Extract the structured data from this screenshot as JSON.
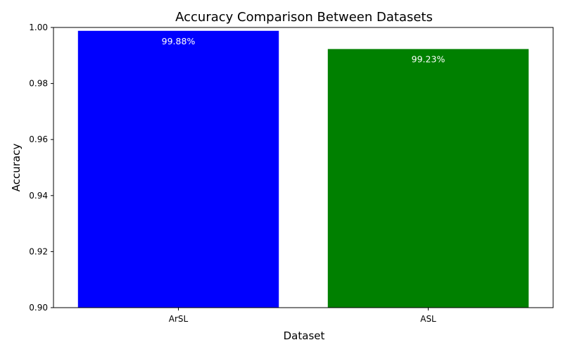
{
  "chart_data": {
    "type": "bar",
    "title": "Accuracy Comparison Between Datasets",
    "xlabel": "Dataset",
    "ylabel": "Accuracy",
    "categories": [
      "ArSL",
      "ASL"
    ],
    "values": [
      0.9988,
      0.9923
    ],
    "data_labels": [
      "99.88%",
      "99.23%"
    ],
    "colors": [
      "#0000ff",
      "#008000"
    ],
    "data_label_color": "#ffffff",
    "ylim": [
      0.9,
      1.0
    ],
    "yticks": [
      0.9,
      0.92,
      0.94,
      0.96,
      0.98,
      1.0
    ],
    "ytick_labels": [
      "0.90",
      "0.92",
      "0.94",
      "0.96",
      "0.98",
      "1.00"
    ],
    "grid": false,
    "legend": "none"
  }
}
